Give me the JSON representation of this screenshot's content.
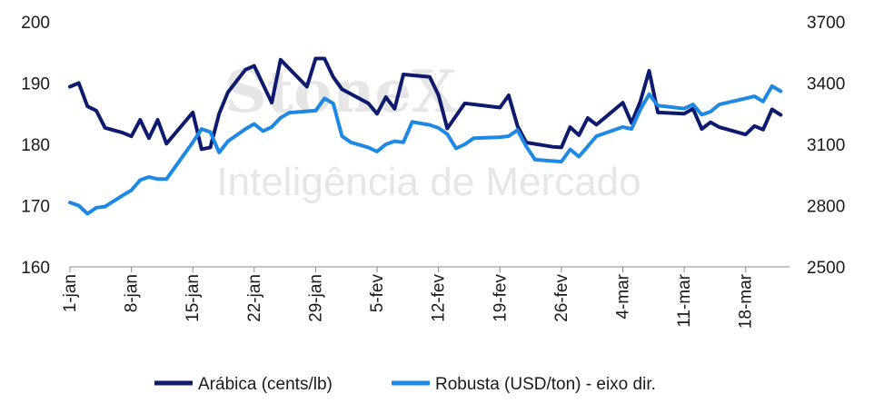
{
  "watermark": {
    "brand": "StoneX",
    "tagline": "Inteligência de Mercado"
  },
  "chart_data": {
    "type": "line",
    "title": "",
    "xlabel": "",
    "ylabel": "",
    "y_left": {
      "ticks": [
        160,
        170,
        180,
        190,
        200
      ],
      "range": [
        160,
        200
      ]
    },
    "y_right": {
      "ticks": [
        2500,
        2800,
        3100,
        3400,
        3700
      ],
      "range": [
        2500,
        3700
      ]
    },
    "x_ticks": [
      {
        "label": "1-jan",
        "day": 1
      },
      {
        "label": "8-jan",
        "day": 8
      },
      {
        "label": "15-jan",
        "day": 15
      },
      {
        "label": "22-jan",
        "day": 22
      },
      {
        "label": "29-jan",
        "day": 29
      },
      {
        "label": "5-fev",
        "day": 36
      },
      {
        "label": "12-fev",
        "day": 43
      },
      {
        "label": "19-fev",
        "day": 50
      },
      {
        "label": "26-fev",
        "day": 57
      },
      {
        "label": "4-mar",
        "day": 64
      },
      {
        "label": "11-mar",
        "day": 71
      },
      {
        "label": "18-mar",
        "day": 78
      }
    ],
    "x_range": [
      1,
      83
    ],
    "grid": false,
    "legend_position": "bottom",
    "series": [
      {
        "name": "Arábica (cents/lb)",
        "axis": "left",
        "color": "#0d1a6e",
        "points": [
          [
            1,
            189.4
          ],
          [
            2,
            190.0
          ],
          [
            3,
            186.2
          ],
          [
            4,
            185.5
          ],
          [
            5,
            182.7
          ],
          [
            7,
            181.9
          ],
          [
            8,
            181.3
          ],
          [
            9,
            184.0
          ],
          [
            10,
            181.0
          ],
          [
            11,
            184.0
          ],
          [
            12,
            180.1
          ],
          [
            15,
            185.2
          ],
          [
            16,
            179.2
          ],
          [
            17,
            179.5
          ],
          [
            18,
            185.0
          ],
          [
            19,
            188.5
          ],
          [
            21,
            192.2
          ],
          [
            22,
            192.8
          ],
          [
            24,
            186.8
          ],
          [
            25,
            193.8
          ],
          [
            28,
            189.4
          ],
          [
            29,
            194.0
          ],
          [
            30,
            194.0
          ],
          [
            31,
            191.0
          ],
          [
            32,
            189.0
          ],
          [
            35,
            186.7
          ],
          [
            36,
            185.0
          ],
          [
            37,
            187.7
          ],
          [
            38,
            185.8
          ],
          [
            39,
            191.4
          ],
          [
            42,
            191.0
          ],
          [
            43,
            188.0
          ],
          [
            44,
            182.6
          ],
          [
            46,
            186.7
          ],
          [
            50,
            186.0
          ],
          [
            51,
            188.0
          ],
          [
            52,
            183.0
          ],
          [
            53,
            180.3
          ],
          [
            56,
            179.6
          ],
          [
            57,
            179.5
          ],
          [
            58,
            182.8
          ],
          [
            59,
            181.5
          ],
          [
            60,
            184.3
          ],
          [
            61,
            183.2
          ],
          [
            64,
            186.8
          ],
          [
            65,
            183.5
          ],
          [
            66,
            187.0
          ],
          [
            67,
            192.0
          ],
          [
            68,
            185.2
          ],
          [
            71,
            185.0
          ],
          [
            72,
            185.8
          ],
          [
            73,
            182.5
          ],
          [
            74,
            183.6
          ],
          [
            75,
            182.8
          ],
          [
            78,
            181.6
          ],
          [
            79,
            183.0
          ],
          [
            80,
            182.4
          ],
          [
            81,
            185.7
          ],
          [
            82,
            184.8
          ]
        ]
      },
      {
        "name": "Robusta (USD/ton) - eixo dir.",
        "axis": "right",
        "color": "#1e88e5",
        "points": [
          [
            1,
            2815
          ],
          [
            2,
            2800
          ],
          [
            3,
            2760
          ],
          [
            4,
            2790
          ],
          [
            5,
            2795
          ],
          [
            7,
            2850
          ],
          [
            8,
            2875
          ],
          [
            9,
            2925
          ],
          [
            10,
            2940
          ],
          [
            11,
            2930
          ],
          [
            12,
            2930
          ],
          [
            15,
            3110
          ],
          [
            16,
            3175
          ],
          [
            17,
            3160
          ],
          [
            18,
            3060
          ],
          [
            19,
            3115
          ],
          [
            21,
            3175
          ],
          [
            22,
            3200
          ],
          [
            23,
            3165
          ],
          [
            24,
            3185
          ],
          [
            25,
            3230
          ],
          [
            26,
            3255
          ],
          [
            29,
            3265
          ],
          [
            30,
            3325
          ],
          [
            31,
            3300
          ],
          [
            32,
            3140
          ],
          [
            33,
            3110
          ],
          [
            35,
            3085
          ],
          [
            36,
            3065
          ],
          [
            37,
            3100
          ],
          [
            38,
            3115
          ],
          [
            39,
            3110
          ],
          [
            40,
            3210
          ],
          [
            42,
            3195
          ],
          [
            43,
            3180
          ],
          [
            44,
            3150
          ],
          [
            45,
            3080
          ],
          [
            46,
            3100
          ],
          [
            47,
            3130
          ],
          [
            50,
            3135
          ],
          [
            51,
            3140
          ],
          [
            52,
            3170
          ],
          [
            53,
            3090
          ],
          [
            54,
            3025
          ],
          [
            57,
            3015
          ],
          [
            58,
            3075
          ],
          [
            59,
            3040
          ],
          [
            60,
            3090
          ],
          [
            61,
            3140
          ],
          [
            64,
            3185
          ],
          [
            65,
            3175
          ],
          [
            66,
            3270
          ],
          [
            67,
            3345
          ],
          [
            68,
            3290
          ],
          [
            71,
            3275
          ],
          [
            72,
            3295
          ],
          [
            73,
            3245
          ],
          [
            74,
            3260
          ],
          [
            75,
            3295
          ],
          [
            78,
            3325
          ],
          [
            79,
            3335
          ],
          [
            80,
            3310
          ],
          [
            81,
            3385
          ],
          [
            82,
            3360
          ]
        ]
      }
    ]
  }
}
